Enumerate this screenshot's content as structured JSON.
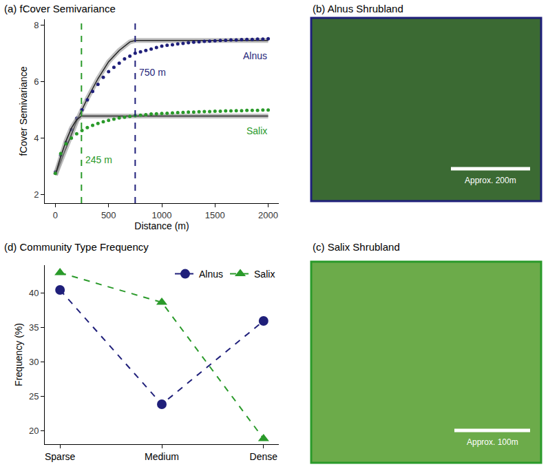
{
  "chart_data": [
    {
      "type": "scatter",
      "title": "(a) fCover Semivariance",
      "x_label": "Distance (m)",
      "y_label": "fCover Semivariance",
      "xlim": [
        -100,
        2100
      ],
      "xticks": [
        0,
        500,
        1000,
        1500,
        2000
      ],
      "ylim": [
        1.7,
        8.2
      ],
      "yticks": [
        2,
        4,
        6,
        8
      ],
      "grid": false,
      "series": [
        {
          "name": "Alnus",
          "color": "#1f1f7a",
          "marker": "circle",
          "x": [
            0,
            50,
            100,
            150,
            200,
            250,
            300,
            350,
            400,
            450,
            500,
            550,
            600,
            650,
            700,
            750,
            800,
            850,
            900,
            950,
            1000,
            1050,
            1100,
            1150,
            1200,
            1250,
            1300,
            1350,
            1400,
            1450,
            1500,
            1550,
            1600,
            1650,
            1700,
            1750,
            1800,
            1850,
            1900,
            1950,
            2000
          ],
          "values": [
            2.8,
            3.4,
            3.85,
            4.3,
            4.7,
            5.0,
            5.35,
            5.65,
            5.9,
            6.15,
            6.35,
            6.5,
            6.65,
            6.8,
            6.9,
            7.0,
            7.05,
            7.1,
            7.15,
            7.2,
            7.25,
            7.28,
            7.3,
            7.33,
            7.35,
            7.37,
            7.39,
            7.4,
            7.42,
            7.43,
            7.44,
            7.45,
            7.46,
            7.47,
            7.47,
            7.48,
            7.49,
            7.49,
            7.5,
            7.5,
            7.51
          ],
          "model_x": [
            0,
            100,
            200,
            300,
            400,
            500,
            600,
            700,
            750,
            2000
          ],
          "model_values": [
            2.7,
            3.65,
            4.6,
            5.4,
            6.1,
            6.7,
            7.1,
            7.4,
            7.45,
            7.45
          ]
        },
        {
          "name": "Salix",
          "color": "#2a9a2a",
          "marker": "circle",
          "x": [
            0,
            50,
            100,
            150,
            200,
            250,
            300,
            350,
            400,
            450,
            500,
            550,
            600,
            650,
            700,
            750,
            800,
            850,
            900,
            950,
            1000,
            1050,
            1100,
            1150,
            1200,
            1250,
            1300,
            1350,
            1400,
            1450,
            1500,
            1550,
            1600,
            1650,
            1700,
            1750,
            1800,
            1850,
            1900,
            1950,
            2000
          ],
          "values": [
            2.75,
            3.45,
            3.8,
            4.0,
            4.15,
            4.27,
            4.37,
            4.45,
            4.52,
            4.58,
            4.63,
            4.67,
            4.71,
            4.74,
            4.77,
            4.79,
            4.81,
            4.83,
            4.85,
            4.86,
            4.87,
            4.88,
            4.89,
            4.9,
            4.91,
            4.92,
            4.92,
            4.93,
            4.94,
            4.94,
            4.95,
            4.95,
            4.96,
            4.96,
            4.97,
            4.97,
            4.98,
            4.98,
            4.98,
            4.99,
            4.99
          ],
          "model_x": [
            0,
            50,
            100,
            150,
            200,
            245,
            2000
          ],
          "model_values": [
            2.7,
            3.35,
            3.9,
            4.35,
            4.65,
            4.78,
            4.78
          ]
        }
      ],
      "vlines": [
        {
          "x": 245,
          "label": "245 m",
          "color": "#2a9a2a"
        },
        {
          "x": 750,
          "label": "750 m",
          "color": "#1f1f7a"
        }
      ]
    },
    {
      "type": "line",
      "title": "(d) Community Type Frequency",
      "y_label": "Frequency (%)",
      "categories": [
        "Sparse",
        "Medium",
        "Dense"
      ],
      "ylim": [
        18,
        44
      ],
      "yticks": [
        20,
        25,
        30,
        35,
        40
      ],
      "grid": false,
      "legend": "top-right",
      "series": [
        {
          "name": "Alnus",
          "color": "#1f1f7a",
          "marker": "circle",
          "line_style": "dash",
          "values": [
            40.4,
            23.8,
            35.9
          ]
        },
        {
          "name": "Salix",
          "color": "#2a9a2a",
          "marker": "triangle-up",
          "line_style": "dash",
          "values": [
            42.9,
            38.6,
            18.8
          ]
        }
      ]
    }
  ],
  "images": [
    {
      "title": "(b) Alnus Shrubland",
      "border_color": "#1f1f7a",
      "scale_label": "Approx. 200m"
    },
    {
      "title": "(c) Salix Shrubland",
      "border_color": "#2a9a2a",
      "scale_label": "Approx. 100m"
    }
  ]
}
